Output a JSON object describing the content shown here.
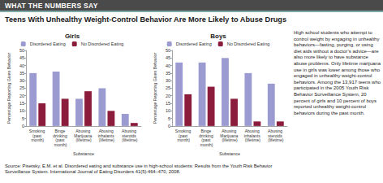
{
  "banner": "WHAT THE NUMBERS SAY",
  "title": "Teens With Unhealthy Weight-Control Behavior Are More Likely to Abuse Drugs",
  "sidebar": "High school students who attempt to control weight by engaging in unhealthy behaviors—fasting, purging, or using diet aids without a doctor’s advice—are also more likely to have substance abuse problems. Only lifetime marijuana use in girls was lower among those who engaged in unhealthy weight-control behaviors. Among the 13,917 teens who participated in the 2005 Youth Risk Behavior Surveillance System, 20 percent of girls and 10 percent of boys reported unhealthy weight-control behaviors during the past month.",
  "source": "Source: Pisetsky, E.M. et al. Disordered eating and substance use in high-school students: Results from the Youth Risk Behavior Surveillance System. International Journal of Eating Disorders 41(5):464–470, 2008.",
  "chart_data": [
    {
      "type": "bar",
      "title": "Girls",
      "x_label": "Substance",
      "y_label": "Percentage Reporting Given Behavior",
      "categories": [
        "Smoking (past month)",
        "Binge drinking (past month)",
        "Abusing Marijuana (lifetime)",
        "Abusing inhalants (lifetime)",
        "Abusing steroids (lifetime)"
      ],
      "series": [
        {
          "name": "Disordered Eating",
          "color": "#9b9bd2",
          "values": [
            35,
            36,
            18,
            25,
            8
          ]
        },
        {
          "name": "No Disordered Eating",
          "color": "#8c1c3c",
          "values": [
            15,
            18,
            23,
            10,
            2
          ]
        }
      ],
      "ylim": [
        0,
        50
      ],
      "yticks": [
        0,
        5,
        10,
        15,
        20,
        25,
        30,
        35,
        40,
        45,
        50
      ],
      "grid": false,
      "legend": "top"
    },
    {
      "type": "bar",
      "title": "Boys",
      "x_label": "Substance",
      "y_label": "Percentage Reporting Given Behavior",
      "categories": [
        "Smoking (past month)",
        "Binge drinking (past month)",
        "Abusing Marijuana (lifetime)",
        "Abusing inhalants (lifetime)",
        "Abusing steroids (lifetime)"
      ],
      "series": [
        {
          "name": "Disordered Eating",
          "color": "#9b9bd2",
          "values": [
            42,
            42,
            45,
            35,
            28
          ]
        },
        {
          "name": "No Disordered Eating",
          "color": "#8c1c3c",
          "values": [
            21,
            26,
            18,
            3,
            3
          ]
        }
      ],
      "ylim": [
        0,
        50
      ],
      "yticks": [
        0,
        5,
        10,
        15,
        20,
        25,
        30,
        35,
        40,
        45,
        50
      ],
      "grid": false,
      "legend": "top"
    }
  ]
}
